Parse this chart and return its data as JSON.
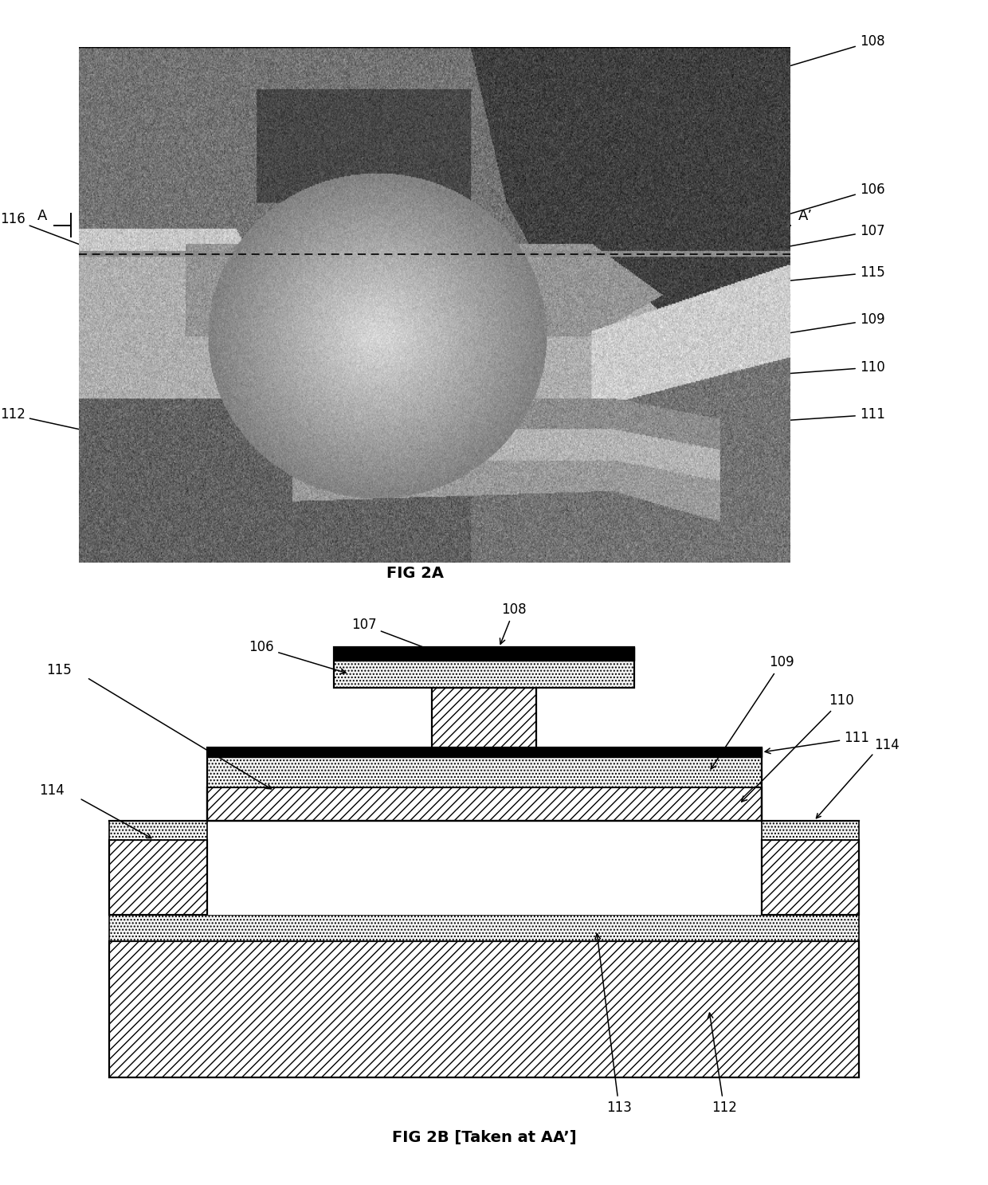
{
  "fig_width": 12.4,
  "fig_height": 14.87,
  "bg_color": "#ffffff",
  "fig2a_caption": "FIG 2A",
  "fig2b_caption": "FIG 2B [Taken at AA’]",
  "caption_fontsize": 14,
  "label_fontsize": 13,
  "ann_fontsize": 12
}
